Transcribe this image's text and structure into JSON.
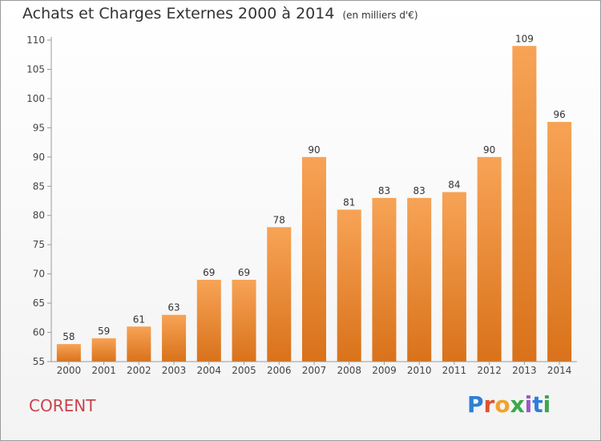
{
  "header": {
    "title": "Achats et Charges Externes 2000 à 2014",
    "subtitle": "(en milliers d'€)"
  },
  "footer": {
    "place": "CORENT",
    "brand": "Proxiti"
  },
  "colors": {
    "bar_top": "#f7a356",
    "bar_bottom": "#d9721a",
    "place_text": "#c8444c",
    "brand_letters": [
      "#2e7fd6",
      "#e0532d",
      "#f0a32a",
      "#3aa84a",
      "#9a57c6",
      "#2e7fd6",
      "#3aa84a"
    ]
  },
  "chart_data": {
    "type": "bar",
    "categories": [
      "2000",
      "2001",
      "2002",
      "2003",
      "2004",
      "2005",
      "2006",
      "2007",
      "2008",
      "2009",
      "2010",
      "2011",
      "2012",
      "2013",
      "2014"
    ],
    "values": [
      58,
      59,
      61,
      63,
      69,
      69,
      78,
      90,
      81,
      83,
      83,
      84,
      90,
      109,
      96
    ],
    "ylim": [
      55,
      110
    ],
    "yticks": [
      55,
      60,
      65,
      70,
      75,
      80,
      85,
      90,
      95,
      100,
      105,
      110
    ],
    "grid": false,
    "data_labels": true
  }
}
